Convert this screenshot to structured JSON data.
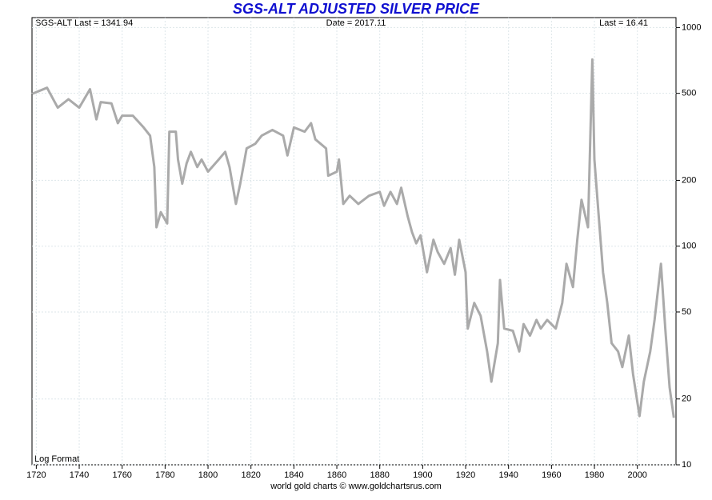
{
  "chart_data": {
    "type": "line",
    "title": "SGS-ALT ADJUSTED  SILVER PRICE",
    "annotations": [
      "SGS-ALT Last = 1341.94",
      "Date = 2017.11",
      "Last = 16.41"
    ],
    "format_note": "Log Format",
    "source": "world gold charts © www.goldchartsrus.com",
    "log_scale": true,
    "grid": true,
    "y_axis_side": "right",
    "color": "#aaaaaa",
    "x": [
      1718,
      1725,
      1730,
      1735,
      1740,
      1745,
      1748,
      1750,
      1755,
      1758,
      1760,
      1765,
      1770,
      1773,
      1775,
      1776,
      1778,
      1781,
      1782,
      1785,
      1786,
      1788,
      1790,
      1792,
      1795,
      1797,
      1800,
      1805,
      1808,
      1810,
      1813,
      1815,
      1818,
      1822,
      1825,
      1830,
      1835,
      1837,
      1840,
      1845,
      1848,
      1850,
      1855,
      1856,
      1860,
      1861,
      1863,
      1866,
      1870,
      1875,
      1880,
      1882,
      1885,
      1888,
      1890,
      1893,
      1895,
      1897,
      1899,
      1902,
      1905,
      1907,
      1910,
      1913,
      1915,
      1917,
      1920,
      1921,
      1924,
      1927,
      1930,
      1932,
      1935,
      1936,
      1938,
      1942,
      1945,
      1947,
      1950,
      1953,
      1955,
      1958,
      1962,
      1965,
      1967,
      1970,
      1972,
      1974,
      1977,
      1979,
      1980,
      1982,
      1984,
      1986,
      1988,
      1991,
      1993,
      1996,
      1998,
      2001,
      2003,
      2006,
      2008,
      2011,
      2013,
      2015,
      2017
    ],
    "values": [
      497,
      530,
      430,
      470,
      430,
      522,
      380,
      456,
      450,
      365,
      395,
      395,
      349,
      320,
      230,
      122,
      143,
      127,
      334,
      334,
      249,
      193,
      239,
      270,
      230,
      249,
      219,
      249,
      270,
      230,
      156,
      193,
      280,
      294,
      320,
      340,
      320,
      260,
      349,
      334,
      365,
      308,
      280,
      210,
      219,
      249,
      156,
      170,
      156,
      170,
      177,
      153,
      177,
      156,
      185,
      137,
      116,
      103,
      112,
      76,
      107,
      94,
      83,
      98,
      74,
      107,
      76,
      42,
      55,
      48,
      33,
      24,
      36,
      70,
      42,
      41,
      33,
      44,
      39,
      46,
      42,
      46,
      42,
      55,
      83,
      65,
      107,
      163,
      122,
      714,
      249,
      137,
      76,
      55,
      36,
      33,
      28,
      39,
      26,
      16.7,
      24,
      33,
      46,
      83,
      42,
      22.6,
      16.41
    ],
    "xlim": [
      1718,
      2018
    ],
    "xticks": [
      1720,
      1740,
      1760,
      1780,
      1800,
      1820,
      1840,
      1860,
      1880,
      1900,
      1920,
      1940,
      1960,
      1980,
      2000
    ],
    "ylim": [
      10,
      1110
    ],
    "yticks": [
      10,
      20,
      50,
      100,
      200,
      500,
      1000
    ]
  }
}
